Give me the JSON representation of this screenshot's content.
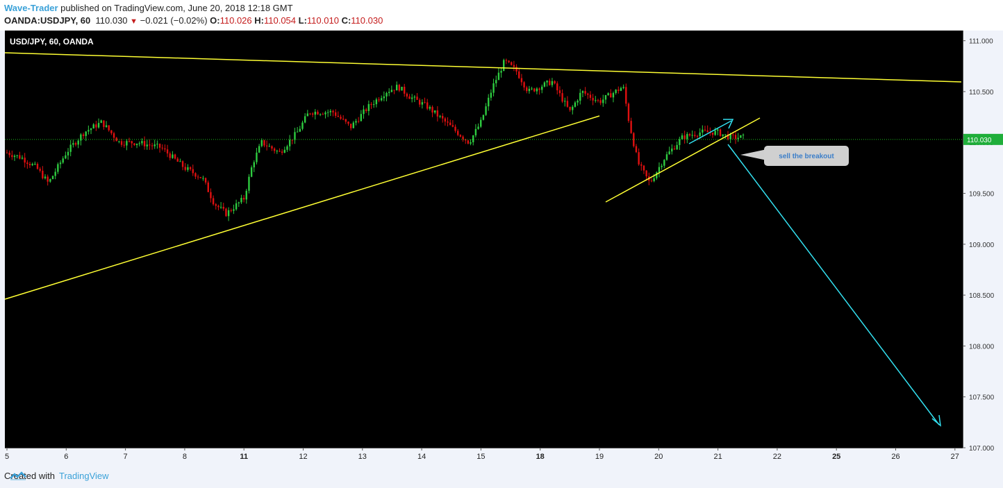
{
  "header": {
    "author": "Wave-Trader",
    "published_text": " published on TradingView.com, June 20, 2018 12:18 GMT",
    "symbol": "OANDA:USDJPY, 60",
    "last": "110.030",
    "change": "−0.021 (−0.02%)",
    "o_label": "O:",
    "o_value": "110.026",
    "h_label": "H:",
    "h_value": "110.054",
    "l_label": "L:",
    "l_value": "110.010",
    "c_label": "C:",
    "c_value": "110.030"
  },
  "chart_title": "USD/JPY, 60, OANDA",
  "annotation": "sell the breakout",
  "last_price_label": "110.030",
  "footer": {
    "created_with": "Created with",
    "brand": "TradingView"
  },
  "colors": {
    "background": "#000000",
    "up": "#2ecc40",
    "down": "#e01010",
    "trendline": "#ffff33",
    "arrow": "#33e0f0",
    "axis_bg": "#f0f3fa",
    "last_price_line": "#1ebe1e"
  },
  "chart_data": {
    "type": "candlestick",
    "title": "USD/JPY, 60, OANDA",
    "y_ticks": [
      "111.000",
      "110.500",
      "110.000",
      "109.500",
      "109.000",
      "108.500",
      "108.000",
      "107.500",
      "107.000"
    ],
    "y_tick_values": [
      111.0,
      110.5,
      110.0,
      109.5,
      109.0,
      108.5,
      108.0,
      107.5,
      107.0
    ],
    "x_ticks": [
      "5",
      "6",
      "7",
      "8",
      "11",
      "12",
      "13",
      "14",
      "15",
      "18",
      "19",
      "20",
      "21",
      "22",
      "25",
      "26",
      "27"
    ],
    "x_ticks_bold": [
      "11",
      "18",
      "25"
    ],
    "ylim": [
      107.0,
      111.1
    ],
    "last_price": 110.03,
    "price_path": [
      [
        0.0,
        109.9
      ],
      [
        0.25,
        109.85
      ],
      [
        0.5,
        109.75
      ],
      [
        0.7,
        109.6
      ],
      [
        1.0,
        109.9
      ],
      [
        1.3,
        110.1
      ],
      [
        1.6,
        110.2
      ],
      [
        1.9,
        110.0
      ],
      [
        2.2,
        110.0
      ],
      [
        2.6,
        109.95
      ],
      [
        3.0,
        109.75
      ],
      [
        3.3,
        109.65
      ],
      [
        3.5,
        109.4
      ],
      [
        3.7,
        109.3
      ],
      [
        4.0,
        109.45
      ],
      [
        4.15,
        109.8
      ],
      [
        4.3,
        110.0
      ],
      [
        4.6,
        109.9
      ],
      [
        4.9,
        110.1
      ],
      [
        5.1,
        110.3
      ],
      [
        5.5,
        110.3
      ],
      [
        5.8,
        110.15
      ],
      [
        6.1,
        110.35
      ],
      [
        6.4,
        110.5
      ],
      [
        6.6,
        110.55
      ],
      [
        6.8,
        110.45
      ],
      [
        7.1,
        110.35
      ],
      [
        7.5,
        110.15
      ],
      [
        7.8,
        110.0
      ],
      [
        8.0,
        110.2
      ],
      [
        8.2,
        110.55
      ],
      [
        8.4,
        110.8
      ],
      [
        8.6,
        110.7
      ],
      [
        8.8,
        110.5
      ],
      [
        9.2,
        110.6
      ],
      [
        9.5,
        110.3
      ],
      [
        9.7,
        110.5
      ],
      [
        10.0,
        110.4
      ],
      [
        10.4,
        110.55
      ],
      [
        10.5,
        110.2
      ],
      [
        10.65,
        109.8
      ],
      [
        10.85,
        109.6
      ],
      [
        11.1,
        109.85
      ],
      [
        11.4,
        110.05
      ],
      [
        11.7,
        110.1
      ],
      [
        12.0,
        110.1
      ],
      [
        12.2,
        110.05
      ],
      [
        12.4,
        110.05
      ]
    ],
    "annotations": [
      "sell the breakout"
    ]
  }
}
